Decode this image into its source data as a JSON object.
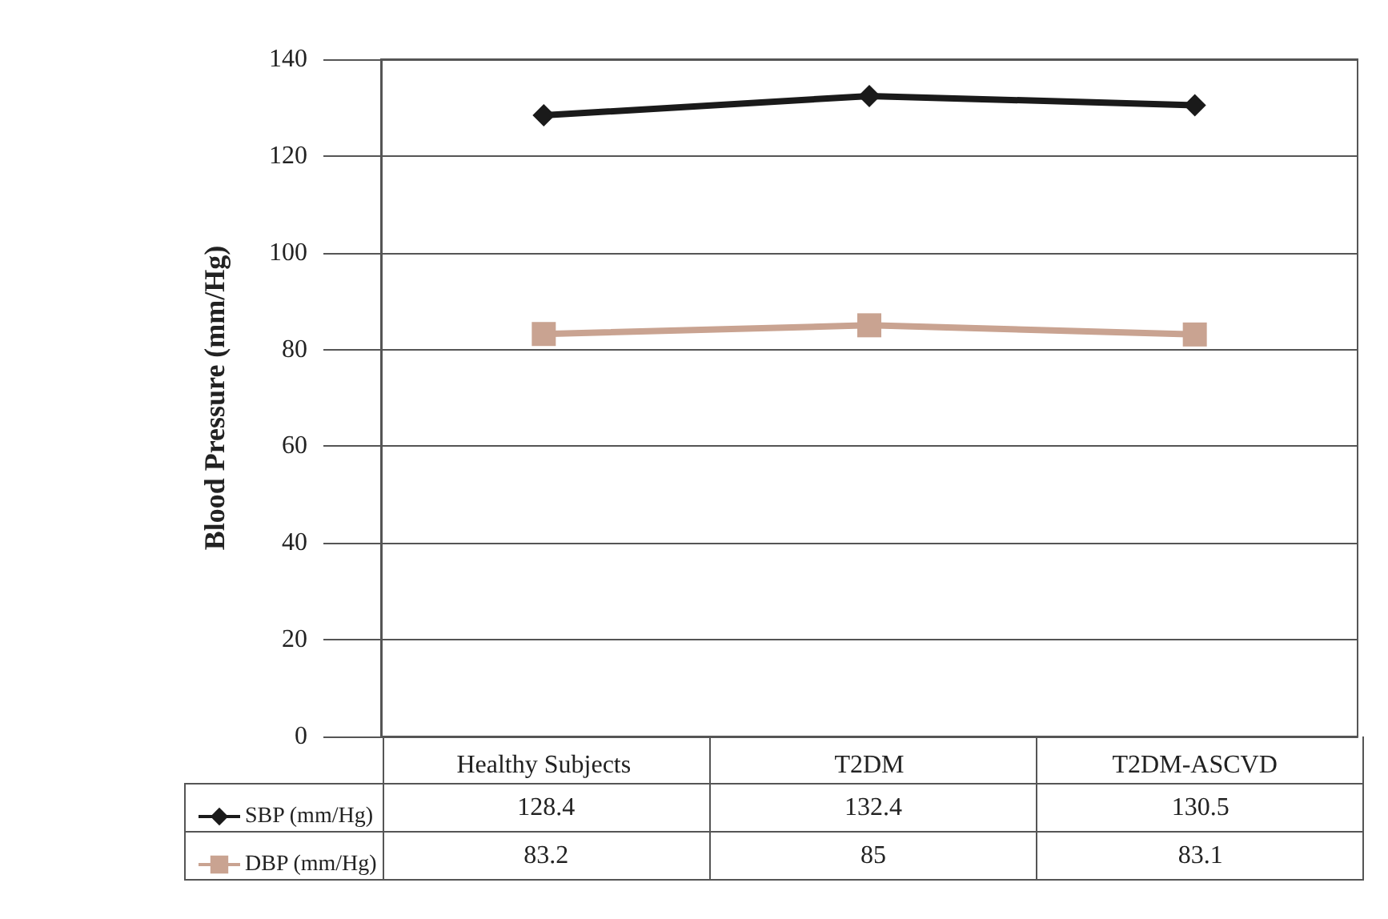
{
  "chart_data": {
    "type": "line",
    "ylabel": "Blood Pressure (mm/Hg)",
    "categories": [
      "Healthy Subjects",
      "T2DM",
      "T2DM-ASCVD"
    ],
    "series": [
      {
        "name": "SBP (mm/Hg)",
        "color": "#1a1a1a",
        "marker": "diamond",
        "values": [
          128.4,
          132.4,
          130.5
        ]
      },
      {
        "name": "DBP (mm/Hg)",
        "color": "#c9a391",
        "marker": "square",
        "values": [
          83.2,
          85,
          83.1
        ]
      }
    ],
    "ylim": [
      0,
      140
    ],
    "yticks": [
      0,
      20,
      40,
      60,
      80,
      100,
      120,
      140
    ],
    "grid": "y",
    "legend": "bottom",
    "data_labels": true
  }
}
